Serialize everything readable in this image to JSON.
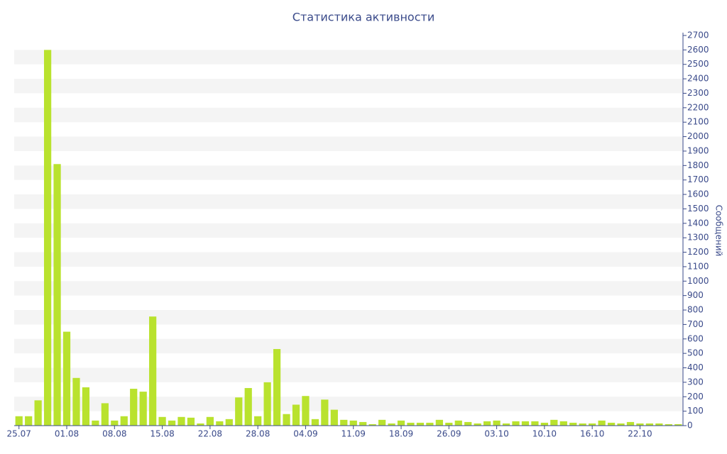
{
  "chart_data": {
    "type": "bar",
    "title": "Статистика активности",
    "y_label": "Сообщений",
    "categories": [
      "25.07",
      null,
      null,
      null,
      null,
      "01.08",
      null,
      null,
      null,
      null,
      "08.08",
      null,
      null,
      null,
      null,
      "15.08",
      null,
      null,
      null,
      null,
      "22.08",
      null,
      null,
      null,
      null,
      "28.08",
      null,
      null,
      null,
      null,
      "04.09",
      null,
      null,
      null,
      null,
      "11.09",
      null,
      null,
      null,
      null,
      "18.09",
      null,
      null,
      null,
      null,
      "26.09",
      null,
      null,
      null,
      null,
      "03.10",
      null,
      null,
      null,
      null,
      "10.10",
      null,
      null,
      null,
      null,
      "16.10",
      null,
      null,
      null,
      null,
      "22.10",
      null,
      null,
      null,
      null
    ],
    "values": [
      65,
      65,
      175,
      2600,
      1810,
      650,
      330,
      265,
      35,
      155,
      35,
      65,
      255,
      235,
      755,
      60,
      35,
      60,
      55,
      15,
      60,
      30,
      45,
      195,
      260,
      65,
      300,
      530,
      80,
      145,
      205,
      45,
      180,
      110,
      40,
      35,
      25,
      10,
      40,
      15,
      35,
      20,
      20,
      20,
      40,
      20,
      35,
      25,
      15,
      30,
      35,
      15,
      30,
      30,
      30,
      20,
      40,
      30,
      20,
      15,
      15,
      35,
      20,
      15,
      25,
      15,
      15,
      15,
      10,
      10
    ],
    "color": "#b9e22e",
    "ylim": [
      0,
      2700
    ],
    "yticks": [
      0,
      100,
      200,
      300,
      400,
      500,
      600,
      700,
      800,
      900,
      1000,
      1100,
      1200,
      1300,
      1400,
      1500,
      1600,
      1700,
      1800,
      1900,
      2000,
      2100,
      2200,
      2300,
      2400,
      2500,
      2600,
      2700
    ],
    "grid": true,
    "y_axis_side": "right"
  }
}
